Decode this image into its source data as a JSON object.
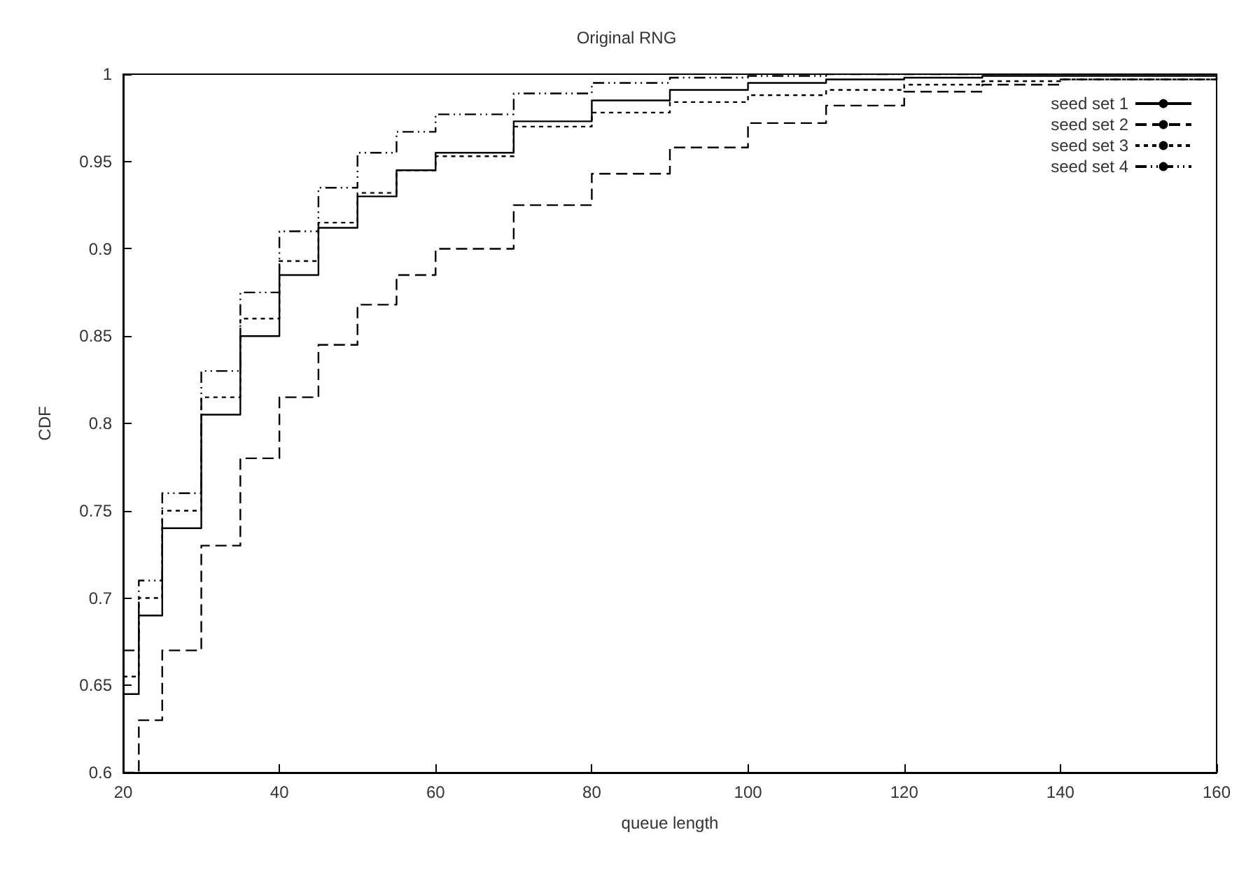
{
  "chart_data": {
    "type": "step",
    "title": "Original RNG",
    "xlabel": "queue length",
    "ylabel": "CDF",
    "xlim": [
      20,
      160
    ],
    "xticks": [
      20,
      40,
      60,
      80,
      100,
      120,
      140,
      160
    ],
    "ylim": [
      0.6,
      1
    ],
    "yticks": [
      0.6,
      0.65,
      0.7,
      0.75,
      0.8,
      0.85,
      0.9,
      0.95,
      1
    ],
    "grid": false,
    "legend": "top right",
    "marker": "none",
    "x": [
      20,
      22,
      25,
      30,
      35,
      40,
      45,
      50,
      55,
      60,
      70,
      80,
      90,
      100,
      110,
      120,
      130,
      140,
      160
    ],
    "series": [
      {
        "name": "seed set 1",
        "color": "#000000",
        "line_style": "solid",
        "values": [
          0.645,
          0.69,
          0.74,
          0.805,
          0.85,
          0.885,
          0.912,
          0.93,
          0.945,
          0.955,
          0.973,
          0.985,
          0.991,
          0.995,
          0.997,
          0.998,
          0.999,
          0.999,
          1
        ]
      },
      {
        "name": "seed set 2",
        "color": "#000000",
        "line_style": "dashed",
        "values": [
          0.6,
          0.63,
          0.67,
          0.73,
          0.78,
          0.815,
          0.845,
          0.868,
          0.885,
          0.9,
          0.925,
          0.943,
          0.958,
          0.972,
          0.982,
          0.99,
          0.994,
          0.997,
          0.999
        ]
      },
      {
        "name": "seed set 3",
        "color": "#000000",
        "line_style": "dotted",
        "values": [
          0.655,
          0.7,
          0.75,
          0.815,
          0.86,
          0.893,
          0.915,
          0.932,
          0.945,
          0.953,
          0.97,
          0.978,
          0.984,
          0.988,
          0.991,
          0.994,
          0.996,
          0.997,
          0.998
        ]
      },
      {
        "name": "seed set 4",
        "color": "#000000",
        "line_style": "dashdot",
        "values": [
          0.67,
          0.71,
          0.76,
          0.83,
          0.875,
          0.91,
          0.935,
          0.955,
          0.967,
          0.977,
          0.989,
          0.995,
          0.998,
          0.999,
          1,
          1,
          1,
          1,
          1
        ]
      }
    ]
  }
}
